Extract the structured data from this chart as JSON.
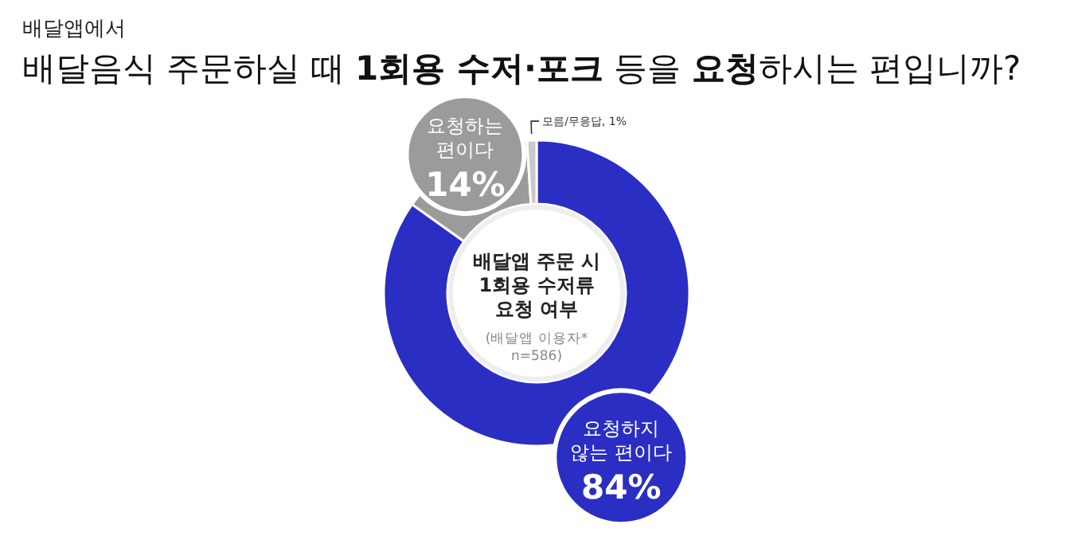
{
  "chart_data": {
    "type": "donut",
    "subtitle": "배달앱에서",
    "title": "배달음식 주문하실 때 **1회용 수저·포크** 등을 **요청**하시는 편입니까?",
    "categories": [
      "요청하지 않는 편이다",
      "요청하는 편이다",
      "모름/무응답"
    ],
    "legend": false,
    "values": [
      84,
      14,
      1
    ],
    "value_labels": [
      "84%",
      "14%",
      "1%"
    ],
    "colors": [
      "#2b2ec2",
      "#9b9b9b",
      "#c9c9c9"
    ],
    "annotations": [
      "배달앱 주문 시 1회용 수저류 요청 여부",
      "(배달앱 이용자* n=586)"
    ]
  }
}
